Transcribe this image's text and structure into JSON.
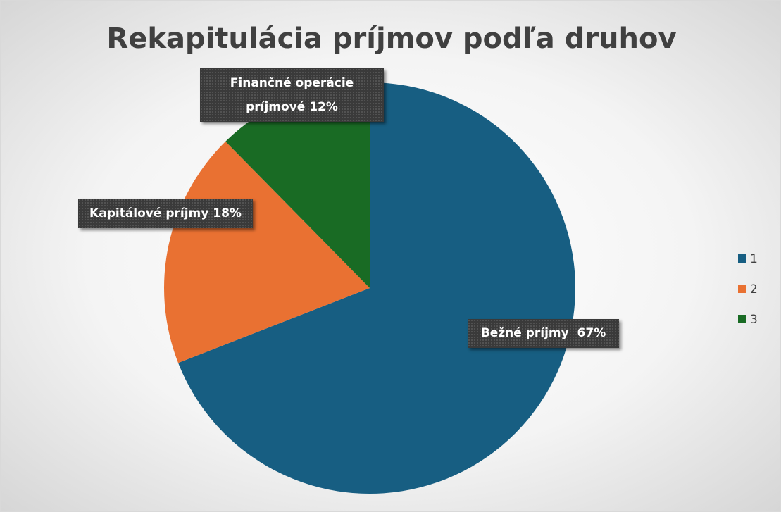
{
  "chart_data": {
    "type": "pie",
    "title": "Rekapitulácia príjmov podľa druhov",
    "categories": [
      "1",
      "2",
      "3"
    ],
    "labels": [
      "Bežné príjmy",
      "Kapitálové príjmy",
      "Finančné operácie príjmové"
    ],
    "values": [
      67,
      18,
      12
    ],
    "value_labels": [
      "67%",
      "18%",
      "12%"
    ],
    "colors": [
      "#175e82",
      "#e97132",
      "#196b24"
    ],
    "legend": "right"
  }
}
